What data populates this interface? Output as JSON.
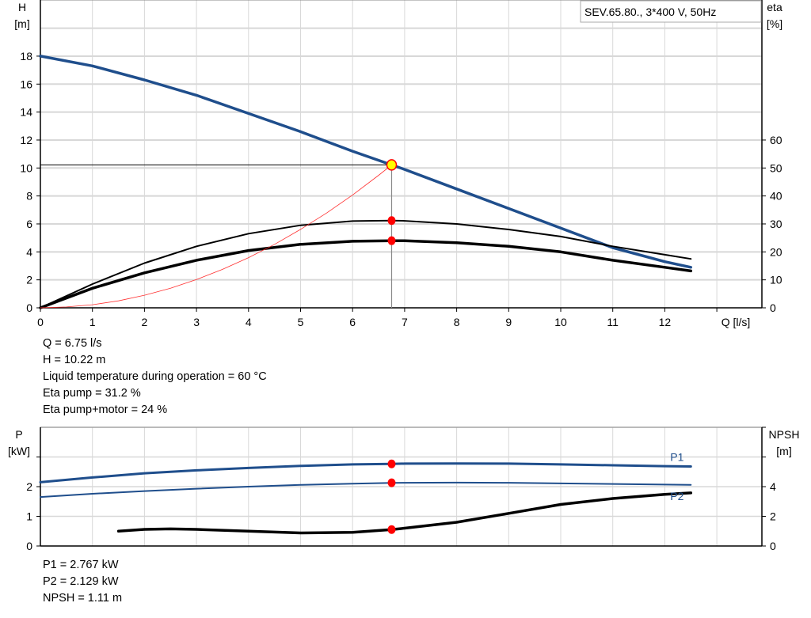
{
  "chart_data": [
    {
      "type": "line",
      "title": "SEV.65.80., 3*400 V, 50Hz",
      "xlabel": "Q [l/s]",
      "ylabel": [
        "H",
        "[m]"
      ],
      "y2label": [
        "eta",
        "[%]"
      ],
      "xlim": [
        0,
        14
      ],
      "ylim": [
        0,
        20
      ],
      "y2lim": [
        0,
        100
      ],
      "xticks": [
        0,
        1,
        2,
        3,
        4,
        5,
        6,
        7,
        8,
        9,
        10,
        11,
        12
      ],
      "yticks": [
        0,
        2,
        4,
        6,
        8,
        10,
        12,
        14,
        16,
        18
      ],
      "y2ticks": [
        0,
        10,
        20,
        30,
        40,
        50,
        60
      ],
      "grid": true,
      "series": [
        {
          "id": "H",
          "axis": "left",
          "color": "#1f4e8c",
          "x": [
            0,
            1,
            2,
            3,
            4,
            5,
            6,
            6.75,
            7,
            8,
            9,
            10,
            11,
            12,
            12.5
          ],
          "y": [
            18,
            17.3,
            16.3,
            15.2,
            13.9,
            12.6,
            11.2,
            10.22,
            9.9,
            8.5,
            7.1,
            5.7,
            4.3,
            3.3,
            2.9
          ]
        },
        {
          "id": "eta-pump",
          "axis": "right",
          "color": "#000000",
          "x": [
            0,
            1,
            2,
            3,
            4,
            5,
            6,
            6.75,
            7,
            8,
            9,
            10,
            11,
            12,
            12.5
          ],
          "y": [
            0,
            8.5,
            16,
            22,
            26.5,
            29.5,
            31,
            31.2,
            31.1,
            30,
            28,
            25.5,
            22,
            19,
            17.5
          ]
        },
        {
          "id": "eta-pump-motor",
          "axis": "right",
          "color": "#000000",
          "x": [
            0,
            1,
            2,
            3,
            4,
            5,
            6,
            6.75,
            7,
            8,
            9,
            10,
            11,
            12,
            12.5
          ],
          "y": [
            0,
            7,
            12.5,
            17,
            20.5,
            22.7,
            23.8,
            24,
            24,
            23.3,
            22,
            20,
            17,
            14.5,
            13.2
          ]
        },
        {
          "id": "system-curve",
          "axis": "left",
          "color": "#ff3030",
          "x": [
            0,
            0.5,
            1,
            1.5,
            2,
            2.5,
            3,
            3.5,
            4,
            4.5,
            5,
            5.5,
            6,
            6.5,
            6.75
          ],
          "y": [
            0,
            0.06,
            0.22,
            0.5,
            0.9,
            1.4,
            2.02,
            2.75,
            3.59,
            4.54,
            5.61,
            6.78,
            8.07,
            9.48,
            10.22
          ]
        }
      ],
      "operating_point": {
        "Q": 6.75,
        "H": 10.22,
        "eta_pump": 31.2,
        "eta_total": 24
      }
    },
    {
      "type": "line",
      "ylabel": [
        "P",
        "[kW]"
      ],
      "y2label": [
        "NPSH",
        "[m]"
      ],
      "xlim": [
        0,
        14
      ],
      "ylim": [
        0,
        4
      ],
      "y2lim": [
        0,
        8
      ],
      "yticks": [
        0,
        1,
        2
      ],
      "y2ticks": [
        0,
        2,
        4
      ],
      "grid": true,
      "series": [
        {
          "id": "P1",
          "name": "P1",
          "axis": "left",
          "color": "#1f4e8c",
          "x": [
            0,
            1,
            2,
            3,
            4,
            5,
            6,
            6.75,
            7,
            8,
            9,
            10,
            11,
            12,
            12.5
          ],
          "y": [
            2.15,
            2.31,
            2.45,
            2.55,
            2.63,
            2.7,
            2.75,
            2.767,
            2.775,
            2.78,
            2.775,
            2.75,
            2.72,
            2.69,
            2.68
          ]
        },
        {
          "id": "P2",
          "name": "P2",
          "axis": "left",
          "color": "#1f4e8c",
          "x": [
            0,
            1,
            2,
            3,
            4,
            5,
            6,
            6.75,
            7,
            8,
            9,
            10,
            11,
            12,
            12.5
          ],
          "y": [
            1.65,
            1.76,
            1.85,
            1.93,
            2.0,
            2.06,
            2.1,
            2.129,
            2.13,
            2.135,
            2.13,
            2.11,
            2.09,
            2.07,
            2.06
          ]
        },
        {
          "id": "NPSH",
          "axis": "right",
          "color": "#000000",
          "x": [
            1.5,
            2,
            2.5,
            3,
            4,
            5,
            6,
            6.75,
            7,
            8,
            9,
            10,
            11,
            12,
            12.5
          ],
          "y": [
            1.0,
            1.12,
            1.15,
            1.12,
            1.0,
            0.88,
            0.92,
            1.11,
            1.2,
            1.6,
            2.2,
            2.8,
            3.2,
            3.48,
            3.58
          ]
        }
      ],
      "operating_point": {
        "P1": 2.767,
        "P2": 2.129,
        "NPSH": 1.11
      }
    }
  ],
  "readout_top": [
    "Q = 6.75 l/s",
    "H = 10.22 m",
    "Liquid temperature during operation = 60 °C",
    "Eta pump = 31.2 %",
    "Eta pump+motor = 24 %"
  ],
  "readout_bottom": [
    "P1 = 2.767 kW",
    "P2 = 2.129 kW",
    "NPSH = 1.11 m"
  ],
  "colors": {
    "curve_blue": "#1f4e8c",
    "marker": "#ff0000",
    "duty_marker": "#ffff00",
    "grid": "#d8d8d8"
  }
}
